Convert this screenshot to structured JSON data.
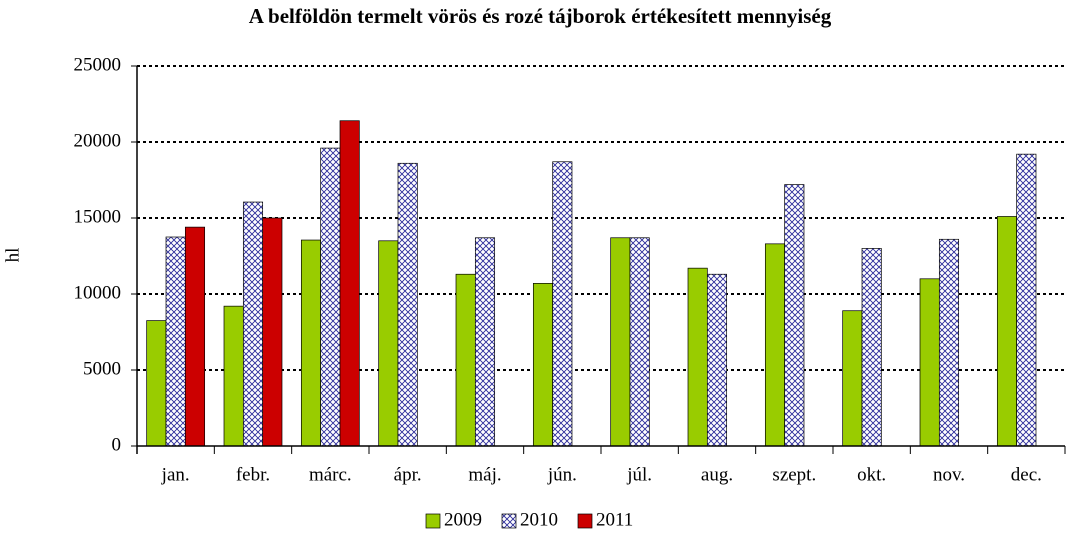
{
  "chart_data": {
    "type": "bar",
    "title": "A belföldön termelt vörös és rozé tájborok értékesített mennyiség",
    "ylabel": "hl",
    "categories": [
      "jan.",
      "febr.",
      "márc.",
      "ápr.",
      "máj.",
      "jún.",
      "júl.",
      "aug.",
      "szept.",
      "okt.",
      "nov.",
      "dec."
    ],
    "series": [
      {
        "name": "2009",
        "color": "#99cc00",
        "values": [
          8250,
          9200,
          13550,
          13500,
          11300,
          10700,
          13700,
          11700,
          13300,
          8900,
          11000,
          15100
        ]
      },
      {
        "name": "2010",
        "color": "#2b2b9a",
        "pattern": "crosshatch",
        "values": [
          13750,
          16050,
          19600,
          18600,
          13700,
          18700,
          13700,
          11300,
          17200,
          13000,
          13600,
          19200
        ]
      },
      {
        "name": "2011",
        "color": "#cc0000",
        "values": [
          14400,
          15000,
          21400,
          null,
          null,
          null,
          null,
          null,
          null,
          null,
          null,
          null
        ]
      }
    ],
    "ylim": [
      0,
      25000
    ],
    "yticks": [
      0,
      5000,
      10000,
      15000,
      20000,
      25000
    ],
    "grid": true,
    "legend": "bottom"
  }
}
